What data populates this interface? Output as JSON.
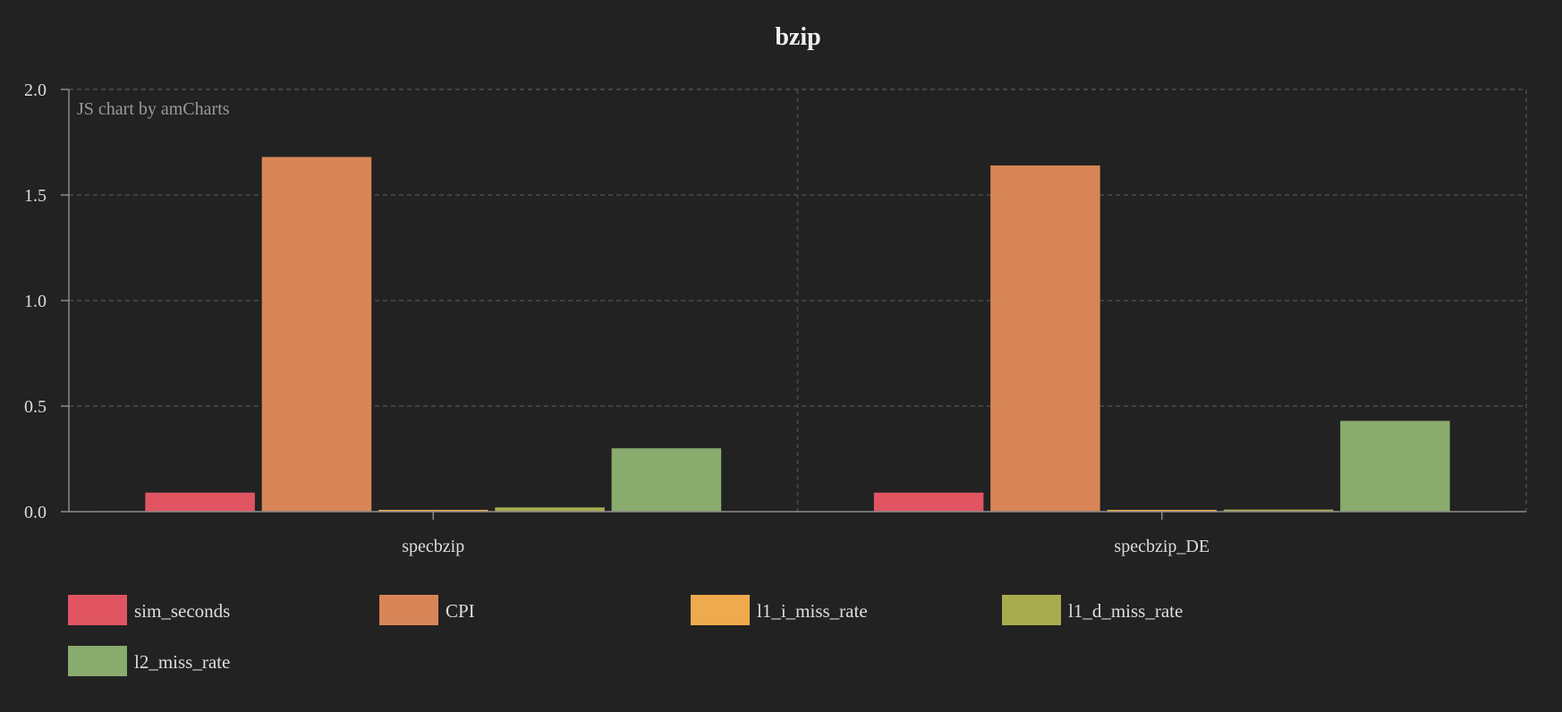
{
  "chart_data": {
    "type": "bar",
    "title": "bzip",
    "credit": "JS chart by amCharts",
    "categories": [
      "specbzip",
      "specbzip_DE"
    ],
    "series": [
      {
        "name": "sim_seconds",
        "color": "#e05561",
        "values": [
          0.09,
          0.09
        ]
      },
      {
        "name": "CPI",
        "color": "#d88657",
        "values": [
          1.68,
          1.64
        ]
      },
      {
        "name": "l1_i_miss_rate",
        "color": "#eeaa4c",
        "values": [
          0.005,
          0.005
        ]
      },
      {
        "name": "l1_d_miss_rate",
        "color": "#a8ac4e",
        "values": [
          0.02,
          0.01
        ]
      },
      {
        "name": "l2_miss_rate",
        "color": "#8aab6e",
        "values": [
          0.3,
          0.43
        ]
      }
    ],
    "yticks": [
      "0.0",
      "0.5",
      "1.0",
      "1.5",
      "2.0"
    ],
    "ylim": [
      0,
      2
    ],
    "grid": true,
    "legend_position": "bottom"
  }
}
